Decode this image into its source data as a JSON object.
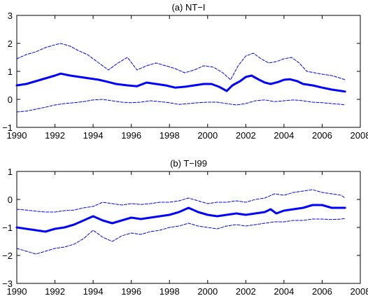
{
  "chart_data": [
    {
      "type": "line",
      "title": "(a) NT−I",
      "xlabel": "",
      "ylabel": "",
      "xlim": [
        1990,
        2008
      ],
      "ylim": [
        -1,
        3
      ],
      "xticks": [
        1990,
        1992,
        1994,
        1996,
        1998,
        2000,
        2002,
        2004,
        2006,
        2008
      ],
      "yticks": [
        -1,
        0,
        1,
        2,
        3
      ],
      "grid": false,
      "color": "#0000ff",
      "series": [
        {
          "role": "estimate",
          "style": "solid-thick",
          "x": [
            1990,
            1990.5,
            1991,
            1991.5,
            1992,
            1992.3,
            1992.8,
            1993.3,
            1993.8,
            1994.3,
            1994.8,
            1995.2,
            1995.8,
            1996.3,
            1996.8,
            1997.3,
            1997.8,
            1998.3,
            1998.8,
            1999.3,
            1999.8,
            2000.2,
            2000.6,
            2001,
            2001.3,
            2001.7,
            2002,
            2002.3,
            2002.7,
            2003,
            2003.3,
            2003.7,
            2004,
            2004.3,
            2004.7,
            2005,
            2005.5,
            2006,
            2006.5,
            2007,
            2007.2
          ],
          "y": [
            0.5,
            0.55,
            0.65,
            0.75,
            0.85,
            0.92,
            0.85,
            0.8,
            0.75,
            0.7,
            0.62,
            0.55,
            0.5,
            0.47,
            0.6,
            0.55,
            0.5,
            0.42,
            0.45,
            0.5,
            0.55,
            0.55,
            0.45,
            0.3,
            0.5,
            0.65,
            0.8,
            0.85,
            0.7,
            0.6,
            0.55,
            0.62,
            0.7,
            0.72,
            0.65,
            0.55,
            0.5,
            0.42,
            0.35,
            0.3,
            0.28
          ]
        },
        {
          "role": "upper-band",
          "style": "dashed",
          "x": [
            1990,
            1990.5,
            1991,
            1991.5,
            1992,
            1992.3,
            1992.8,
            1993.2,
            1993.7,
            1994.2,
            1994.8,
            1995.3,
            1995.8,
            1996.3,
            1996.8,
            1997.3,
            1997.8,
            1998.3,
            1998.8,
            1999.3,
            1999.8,
            2000.3,
            2000.8,
            2001.2,
            2001.6,
            2002,
            2002.4,
            2002.8,
            2003.2,
            2003.6,
            2004,
            2004.4,
            2004.8,
            2005.2,
            2005.6,
            2006,
            2006.5,
            2007,
            2007.2
          ],
          "y": [
            1.45,
            1.6,
            1.7,
            1.85,
            1.95,
            2.0,
            1.9,
            1.75,
            1.6,
            1.35,
            1.05,
            1.3,
            1.5,
            1.05,
            1.2,
            1.3,
            1.2,
            1.1,
            0.95,
            1.05,
            1.2,
            1.15,
            0.95,
            0.7,
            1.2,
            1.55,
            1.65,
            1.45,
            1.3,
            1.35,
            1.45,
            1.5,
            1.3,
            1.0,
            0.95,
            0.9,
            0.85,
            0.75,
            0.7
          ]
        },
        {
          "role": "lower-band",
          "style": "dashed",
          "x": [
            1990,
            1990.5,
            1991,
            1991.5,
            1992,
            1992.5,
            1993,
            1993.5,
            1994,
            1994.5,
            1995,
            1995.5,
            1996,
            1996.5,
            1997,
            1997.5,
            1998,
            1998.5,
            1999,
            1999.5,
            2000,
            2000.5,
            2001,
            2001.5,
            2002,
            2002.5,
            2003,
            2003.5,
            2004,
            2004.5,
            2005,
            2005.5,
            2006,
            2006.5,
            2007,
            2007.2
          ],
          "y": [
            -0.45,
            -0.42,
            -0.35,
            -0.28,
            -0.2,
            -0.15,
            -0.12,
            -0.08,
            -0.02,
            0.0,
            -0.05,
            -0.1,
            -0.12,
            -0.1,
            -0.05,
            -0.08,
            -0.12,
            -0.18,
            -0.15,
            -0.12,
            -0.1,
            -0.1,
            -0.15,
            -0.2,
            -0.15,
            -0.05,
            -0.02,
            -0.08,
            -0.05,
            -0.02,
            -0.05,
            -0.1,
            -0.12,
            -0.15,
            -0.18,
            -0.2
          ]
        }
      ]
    },
    {
      "type": "line",
      "title": "(b) T−I99",
      "xlabel": "",
      "ylabel": "",
      "xlim": [
        1990,
        2008
      ],
      "ylim": [
        -3,
        1
      ],
      "xticks": [
        1990,
        1992,
        1994,
        1996,
        1998,
        2000,
        2002,
        2004,
        2006,
        2008
      ],
      "yticks": [
        -3,
        -2,
        -1,
        0,
        1
      ],
      "grid": false,
      "color": "#0000ff",
      "series": [
        {
          "role": "estimate",
          "style": "solid-thick",
          "x": [
            1990,
            1990.5,
            1991,
            1991.5,
            1992,
            1992.5,
            1993,
            1993.5,
            1994,
            1994.5,
            1995,
            1995.5,
            1996,
            1996.5,
            1997,
            1997.5,
            1998,
            1998.5,
            1999,
            1999.5,
            2000,
            2000.5,
            2001,
            2001.5,
            2002,
            2002.5,
            2003,
            2003.3,
            2003.6,
            2004,
            2004.5,
            2005,
            2005.5,
            2006,
            2006.5,
            2007,
            2007.2
          ],
          "y": [
            -1.0,
            -1.05,
            -1.1,
            -1.15,
            -1.05,
            -1.0,
            -0.9,
            -0.75,
            -0.6,
            -0.75,
            -0.85,
            -0.75,
            -0.65,
            -0.7,
            -0.65,
            -0.6,
            -0.55,
            -0.45,
            -0.3,
            -0.45,
            -0.55,
            -0.6,
            -0.55,
            -0.5,
            -0.55,
            -0.5,
            -0.45,
            -0.35,
            -0.5,
            -0.4,
            -0.35,
            -0.3,
            -0.2,
            -0.2,
            -0.3,
            -0.3,
            -0.3
          ]
        },
        {
          "role": "upper-band",
          "style": "dashed",
          "x": [
            1990,
            1990.5,
            1991,
            1991.5,
            1992,
            1992.5,
            1993,
            1993.5,
            1994,
            1994.5,
            1995,
            1995.5,
            1996,
            1996.5,
            1997,
            1997.5,
            1998,
            1998.5,
            1999,
            1999.5,
            2000,
            2000.5,
            2001,
            2001.5,
            2002,
            2002.5,
            2003,
            2003.5,
            2004,
            2004.5,
            2005,
            2005.5,
            2006,
            2006.5,
            2007,
            2007.2
          ],
          "y": [
            -0.35,
            -0.38,
            -0.42,
            -0.45,
            -0.45,
            -0.4,
            -0.38,
            -0.3,
            -0.25,
            -0.1,
            -0.15,
            -0.2,
            -0.15,
            -0.18,
            -0.15,
            -0.1,
            -0.1,
            -0.05,
            0.05,
            -0.05,
            -0.15,
            -0.1,
            -0.1,
            -0.05,
            -0.1,
            0.0,
            0.05,
            0.2,
            0.15,
            0.25,
            0.3,
            0.35,
            0.25,
            0.2,
            0.15,
            0.05
          ]
        },
        {
          "role": "lower-band",
          "style": "dashed",
          "x": [
            1990,
            1990.5,
            1991,
            1991.5,
            1992,
            1992.5,
            1993,
            1993.5,
            1994,
            1994.5,
            1995,
            1995.5,
            1996,
            1996.5,
            1997,
            1997.5,
            1998,
            1998.5,
            1999,
            1999.5,
            2000,
            2000.5,
            2001,
            2001.5,
            2002,
            2002.5,
            2003,
            2003.5,
            2004,
            2004.5,
            2005,
            2005.5,
            2006,
            2006.5,
            2007,
            2007.2
          ],
          "y": [
            -1.75,
            -1.85,
            -1.95,
            -1.85,
            -1.75,
            -1.7,
            -1.6,
            -1.4,
            -1.1,
            -1.35,
            -1.5,
            -1.3,
            -1.2,
            -1.25,
            -1.15,
            -1.1,
            -1.0,
            -0.95,
            -0.85,
            -0.95,
            -1.0,
            -1.05,
            -0.95,
            -0.9,
            -0.95,
            -0.9,
            -0.85,
            -0.8,
            -0.8,
            -0.75,
            -0.75,
            -0.7,
            -0.7,
            -0.72,
            -0.7,
            -0.68
          ]
        }
      ]
    }
  ]
}
